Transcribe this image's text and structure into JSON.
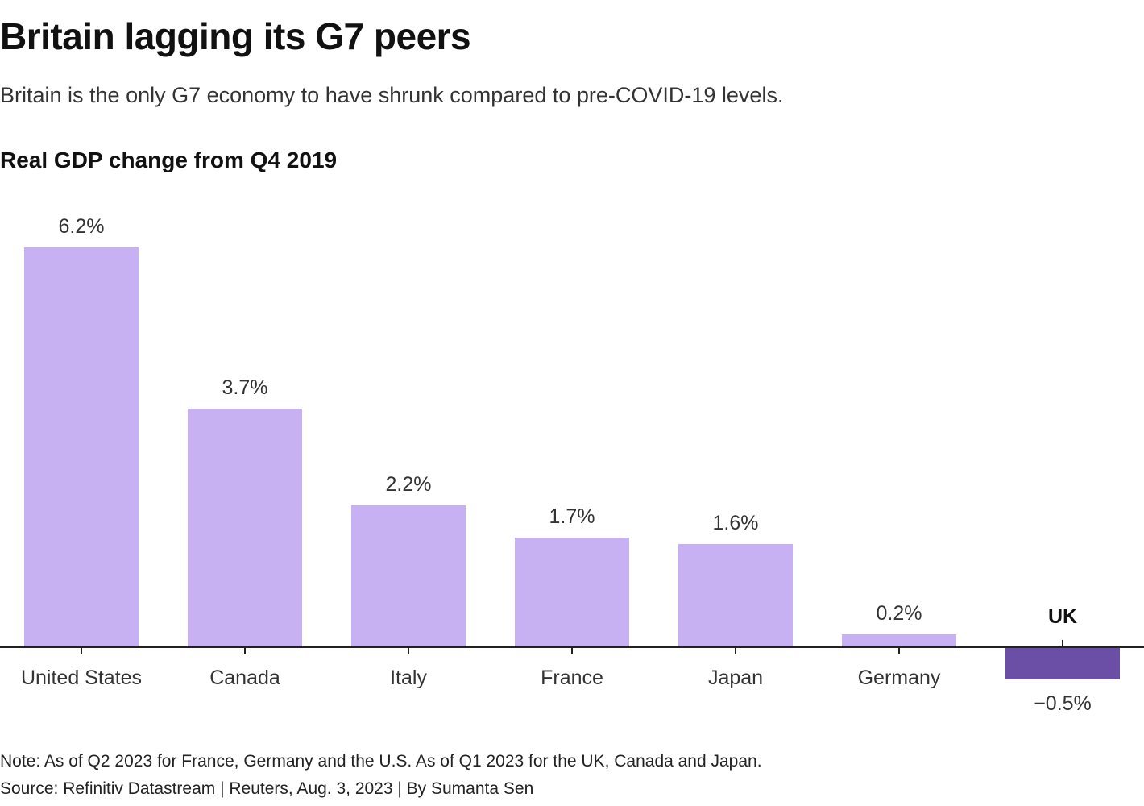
{
  "title": "Britain lagging its G7 peers",
  "subtitle": "Britain is the only G7 economy to have shrunk compared to pre-COVID-19 levels.",
  "footer": {
    "note": "Note: As of Q2 2023 for France, Germany and the U.S. As of Q1 2023 for the UK, Canada and Japan.",
    "source": "Source: Refinitiv Datastream | Reuters, Aug. 3, 2023 | By Sumanta Sen"
  },
  "chart_data": {
    "type": "bar",
    "title": "Real GDP change from Q4 2019",
    "categories": [
      "United States",
      "Canada",
      "Italy",
      "France",
      "Japan",
      "Germany",
      "UK"
    ],
    "values": [
      6.2,
      3.7,
      2.2,
      1.7,
      1.6,
      0.2,
      -0.5
    ],
    "value_labels": [
      "6.2%",
      "3.7%",
      "2.2%",
      "1.7%",
      "1.6%",
      "0.2%",
      "−0.5%"
    ],
    "highlight_category": "UK",
    "xlabel": "",
    "ylabel": "",
    "ylim": [
      -0.5,
      6.2
    ],
    "grid": false,
    "colors": {
      "bar": "#c7b1f3",
      "highlight": "#6b4fa6",
      "axis": "#222222",
      "label": "#333333"
    }
  }
}
